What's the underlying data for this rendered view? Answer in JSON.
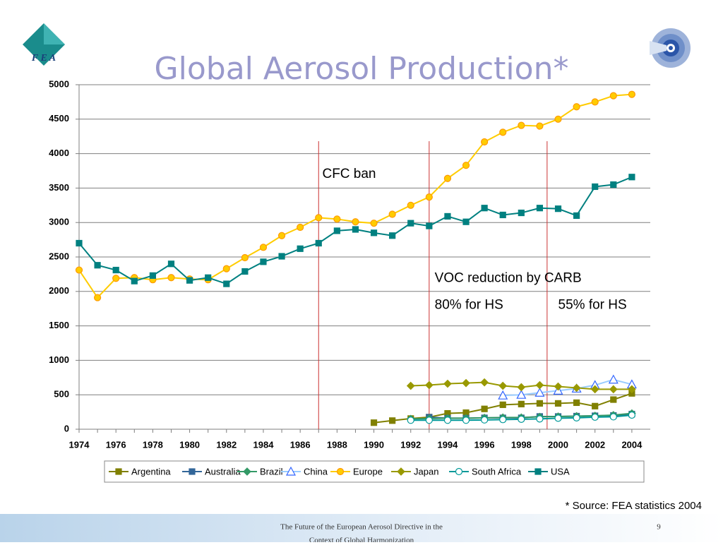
{
  "slide": {
    "logo": "F E A",
    "source": "* Source: FEA statistics 2004",
    "footer_line1": "The Future of the European Aerosol Directive in the",
    "footer_line2": "Context of Global Harmonization",
    "page": "9"
  },
  "chart_data": {
    "type": "line",
    "title": "Global Aerosol Production*",
    "x": [
      1974,
      1975,
      1976,
      1977,
      1978,
      1979,
      1980,
      1981,
      1982,
      1983,
      1984,
      1985,
      1986,
      1987,
      1988,
      1989,
      1990,
      1991,
      1992,
      1993,
      1994,
      1995,
      1996,
      1997,
      1998,
      1999,
      2000,
      2001,
      2002,
      2003,
      2004
    ],
    "xlim": [
      1974,
      2005
    ],
    "xticks": [
      1974,
      1976,
      1978,
      1980,
      1982,
      1984,
      1986,
      1988,
      1990,
      1992,
      1994,
      1996,
      1998,
      2000,
      2002,
      2004
    ],
    "ylim": [
      0,
      5000
    ],
    "yticks": [
      0,
      500,
      1000,
      1500,
      2000,
      2500,
      3000,
      3500,
      4000,
      4500,
      5000
    ],
    "grid": true,
    "legend": "bottom",
    "series": [
      {
        "name": "Argentina",
        "color": "#808000",
        "marker": "square",
        "values": [
          null,
          null,
          null,
          null,
          null,
          null,
          null,
          null,
          null,
          null,
          null,
          null,
          null,
          null,
          null,
          null,
          95,
          125,
          155,
          175,
          230,
          240,
          295,
          355,
          365,
          375,
          375,
          385,
          335,
          430,
          520
        ]
      },
      {
        "name": "Australia",
        "color": "#336699",
        "marker": "square",
        "values": [
          null,
          null,
          null,
          null,
          null,
          null,
          null,
          null,
          null,
          null,
          null,
          null,
          null,
          null,
          null,
          null,
          null,
          null,
          null,
          175,
          160,
          160,
          165,
          165,
          165,
          185,
          185,
          190,
          195,
          200,
          220
        ]
      },
      {
        "name": "Brazil",
        "color": "#339966",
        "marker": "diamond",
        "values": [
          null,
          null,
          null,
          null,
          null,
          null,
          null,
          null,
          null,
          null,
          null,
          null,
          null,
          null,
          null,
          null,
          null,
          null,
          150,
          155,
          160,
          160,
          165,
          170,
          170,
          180,
          185,
          190,
          195,
          205,
          230
        ]
      },
      {
        "name": "China",
        "color": "#99ccff",
        "marker": "triangle",
        "values": [
          null,
          null,
          null,
          null,
          null,
          null,
          null,
          null,
          null,
          null,
          null,
          null,
          null,
          null,
          null,
          null,
          null,
          null,
          null,
          null,
          null,
          null,
          null,
          490,
          500,
          530,
          560,
          590,
          640,
          720,
          650
        ]
      },
      {
        "name": "Europe",
        "color": "#ffcc00",
        "marker": "circle",
        "values": [
          2310,
          1910,
          2190,
          2200,
          2170,
          2200,
          2180,
          2170,
          2330,
          2490,
          2640,
          2810,
          2930,
          3070,
          3050,
          3010,
          2990,
          3120,
          3250,
          3370,
          3640,
          3830,
          4170,
          4310,
          4410,
          4400,
          4500,
          4680,
          4750,
          4840,
          4860
        ]
      },
      {
        "name": "Japan",
        "color": "#999900",
        "marker": "diamond",
        "values": [
          null,
          null,
          null,
          null,
          null,
          null,
          null,
          null,
          null,
          null,
          null,
          null,
          null,
          null,
          null,
          null,
          null,
          null,
          630,
          640,
          660,
          670,
          680,
          630,
          610,
          640,
          620,
          600,
          580,
          580,
          580
        ]
      },
      {
        "name": "South Africa",
        "color": "#009999",
        "marker": "circle",
        "values": [
          null,
          null,
          null,
          null,
          null,
          null,
          null,
          null,
          null,
          null,
          null,
          null,
          null,
          null,
          null,
          null,
          null,
          null,
          130,
          130,
          130,
          130,
          135,
          140,
          145,
          150,
          160,
          165,
          175,
          180,
          205
        ]
      },
      {
        "name": "USA",
        "color": "#008080",
        "marker": "square",
        "values": [
          2700,
          2380,
          2310,
          2150,
          2230,
          2400,
          2160,
          2200,
          2110,
          2290,
          2430,
          2510,
          2620,
          2700,
          2880,
          2900,
          2850,
          2810,
          2990,
          2950,
          3090,
          3010,
          3210,
          3110,
          3140,
          3210,
          3200,
          3100,
          3520,
          3550,
          3660
        ]
      }
    ],
    "vlines": [
      1987,
      1993,
      1999.4
    ],
    "annotations": [
      {
        "text": "CFC ban",
        "x": 1987.2,
        "y": 3700
      },
      {
        "text": "VOC reduction by CARB",
        "x": 1993.3,
        "y": 2190
      },
      {
        "text": "80% for HS",
        "x": 1993.3,
        "y": 1800
      },
      {
        "text": "55% for HS",
        "x": 2000,
        "y": 1800
      }
    ]
  }
}
